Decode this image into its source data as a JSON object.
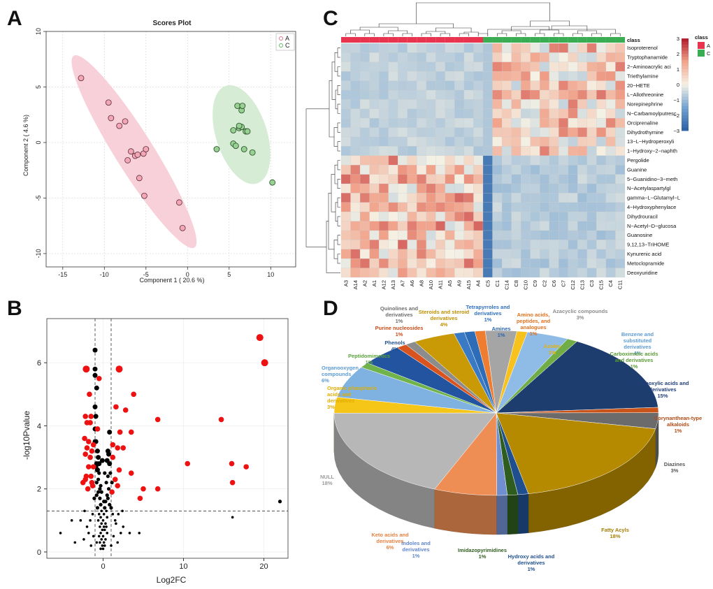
{
  "panels": {
    "a": "A",
    "b": "B",
    "c": "C",
    "d": "D"
  },
  "chart_data": [
    {
      "type": "scatter",
      "panel": "A",
      "title": "Scores Plot",
      "xlabel": "Component 1 ( 20.6 %)",
      "ylabel": "Component 2 ( 4.6 %)",
      "xlim": [
        -17,
        13
      ],
      "ylim": [
        -11.2,
        10
      ],
      "xticks": [
        -15,
        -10,
        -5,
        0,
        5,
        10
      ],
      "yticks": [
        -10,
        -5,
        0,
        5,
        10
      ],
      "legend": [
        "A",
        "C"
      ],
      "colors": {
        "A": "#e8738c",
        "C": "#5cb85c",
        "A_fill": "#f7c8d2",
        "C_fill": "#cfe9cc"
      },
      "series": [
        {
          "name": "A",
          "points": [
            [
              -12.8,
              5.8
            ],
            [
              -9.5,
              3.6
            ],
            [
              -9.2,
              2.2
            ],
            [
              -8.2,
              1.5
            ],
            [
              -7.5,
              1.9
            ],
            [
              -6.8,
              -0.8
            ],
            [
              -6.3,
              -1.2
            ],
            [
              -6.0,
              -1.1
            ],
            [
              -7.2,
              -1.6
            ],
            [
              -5.3,
              -1.0
            ],
            [
              -5.0,
              -0.6
            ],
            [
              -5.8,
              -3.2
            ],
            [
              -5.2,
              -4.8
            ],
            [
              -1.0,
              -5.4
            ],
            [
              -0.6,
              -7.7
            ]
          ]
        },
        {
          "name": "C",
          "points": [
            [
              3.5,
              -0.6
            ],
            [
              5.5,
              -0.1
            ],
            [
              6.0,
              3.3
            ],
            [
              6.5,
              2.9
            ],
            [
              6.6,
              3.3
            ],
            [
              6.2,
              1.3
            ],
            [
              6.5,
              1.4
            ],
            [
              5.5,
              1.1
            ],
            [
              7.0,
              1.0
            ],
            [
              7.2,
              1.0
            ],
            [
              5.8,
              -0.3
            ],
            [
              6.8,
              -0.6
            ],
            [
              7.8,
              -0.9
            ],
            [
              10.2,
              -3.6
            ],
            [
              6.2,
              1.5
            ]
          ]
        }
      ]
    },
    {
      "type": "scatter",
      "panel": "B",
      "xlabel": "Log2FC",
      "ylabel": "-log10Pvalue",
      "xlim": [
        -7,
        23
      ],
      "ylim": [
        -0.2,
        7.4
      ],
      "xticks": [
        0,
        10,
        20
      ],
      "yticks": [
        0,
        2,
        4,
        6
      ],
      "thresholds": {
        "fc": [
          -1,
          1
        ],
        "p": 1.3
      },
      "colors": {
        "sig": "#ee1111",
        "ns": "#000000"
      },
      "series": [
        {
          "name": "significant",
          "points": [
            [
              19.5,
              6.8
            ],
            [
              20.1,
              6.0
            ],
            [
              -2.1,
              5.8
            ],
            [
              2.0,
              5.8
            ],
            [
              -0.5,
              5.5
            ],
            [
              3.8,
              5.0
            ],
            [
              -1.7,
              5.0
            ],
            [
              1.6,
              4.6
            ],
            [
              2.8,
              4.5
            ],
            [
              -2.2,
              4.3
            ],
            [
              -1.5,
              4.3
            ],
            [
              6.8,
              4.2
            ],
            [
              14.7,
              4.2
            ],
            [
              -2.0,
              4.1
            ],
            [
              -1.6,
              4.1
            ],
            [
              -0.7,
              3.9
            ],
            [
              2.1,
              3.8
            ],
            [
              3.5,
              3.8
            ],
            [
              -2.3,
              3.6
            ],
            [
              -1.8,
              3.5
            ],
            [
              -1.2,
              3.4
            ],
            [
              1.2,
              3.4
            ],
            [
              2.5,
              3.3
            ],
            [
              -2.0,
              3.3
            ],
            [
              1.8,
              3.3
            ],
            [
              -1.4,
              3.2
            ],
            [
              -2.2,
              3.1
            ],
            [
              1.2,
              3.0
            ],
            [
              -1.6,
              3.0
            ],
            [
              10.5,
              2.8
            ],
            [
              16.0,
              2.8
            ],
            [
              17.8,
              2.7
            ],
            [
              -1.8,
              2.7
            ],
            [
              -1.2,
              2.7
            ],
            [
              2.0,
              2.6
            ],
            [
              3.5,
              2.5
            ],
            [
              -2.1,
              2.4
            ],
            [
              -1.5,
              2.4
            ],
            [
              1.5,
              2.3
            ],
            [
              -2.5,
              2.2
            ],
            [
              -1.3,
              2.1
            ],
            [
              1.8,
              2.1
            ],
            [
              -1.9,
              2.0
            ],
            [
              6.8,
              2.0
            ],
            [
              5.0,
              2.0
            ],
            [
              16.1,
              2.2
            ],
            [
              1.1,
              1.9
            ],
            [
              4.6,
              1.7
            ],
            [
              -2.2,
              2.3
            ],
            [
              -1.4,
              2.2
            ]
          ]
        },
        {
          "name": "not significant",
          "points": [
            [
              -1.0,
              6.4
            ],
            [
              -1.0,
              5.8
            ],
            [
              -1.0,
              5.6
            ],
            [
              -0.8,
              5.2
            ],
            [
              -1.0,
              4.6
            ],
            [
              -0.9,
              4.3
            ],
            [
              -1.0,
              3.9
            ],
            [
              -1.0,
              3.5
            ],
            [
              -0.9,
              3.5
            ],
            [
              -0.7,
              3.2
            ],
            [
              0.8,
              3.8
            ],
            [
              0.6,
              3.2
            ],
            [
              0.7,
              3.1
            ],
            [
              0.5,
              2.9
            ],
            [
              -0.6,
              3.0
            ],
            [
              -0.8,
              2.8
            ],
            [
              -0.5,
              2.8
            ],
            [
              -0.7,
              2.6
            ],
            [
              -0.5,
              2.5
            ],
            [
              -0.9,
              2.7
            ],
            [
              0.8,
              2.8
            ],
            [
              0.9,
              2.5
            ],
            [
              0.6,
              2.4
            ],
            [
              -0.6,
              2.3
            ],
            [
              -0.8,
              2.2
            ],
            [
              -0.4,
              2.0
            ],
            [
              0.4,
              2.2
            ],
            [
              0.7,
              2.0
            ],
            [
              -0.6,
              1.9
            ],
            [
              0.5,
              1.8
            ],
            [
              -0.8,
              1.8
            ],
            [
              -0.4,
              1.7
            ],
            [
              0.6,
              1.7
            ],
            [
              0.3,
              1.6
            ],
            [
              -0.3,
              1.5
            ],
            [
              0.2,
              1.4
            ],
            [
              -0.2,
              1.3
            ],
            [
              0.4,
              1.3
            ],
            [
              -0.5,
              1.2
            ],
            [
              0.1,
              1.2
            ],
            [
              -0.3,
              1.1
            ],
            [
              0.5,
              1.1
            ],
            [
              -0.6,
              1.0
            ],
            [
              0.0,
              1.0
            ],
            [
              0.3,
              0.9
            ],
            [
              -0.2,
              0.9
            ],
            [
              -0.4,
              0.8
            ],
            [
              0.4,
              0.8
            ],
            [
              -0.1,
              0.7
            ],
            [
              0.2,
              0.7
            ],
            [
              -0.3,
              0.6
            ],
            [
              0.5,
              0.6
            ],
            [
              0.0,
              0.5
            ],
            [
              -0.5,
              0.5
            ],
            [
              0.3,
              0.4
            ],
            [
              -0.2,
              0.4
            ],
            [
              0.1,
              0.3
            ],
            [
              -0.4,
              0.3
            ],
            [
              0.2,
              0.2
            ],
            [
              -0.1,
              0.2
            ],
            [
              0.0,
              0.1
            ],
            [
              -0.3,
              0.1
            ],
            [
              1.0,
              1.4
            ],
            [
              1.2,
              1.2
            ],
            [
              1.5,
              1.0
            ],
            [
              -1.3,
              1.2
            ],
            [
              -1.6,
              1.0
            ],
            [
              -2.0,
              0.8
            ],
            [
              -1.8,
              0.6
            ],
            [
              -2.4,
              0.4
            ],
            [
              -1.2,
              0.5
            ],
            [
              -0.8,
              0.3
            ],
            [
              1.3,
              0.5
            ],
            [
              1.8,
              0.3
            ],
            [
              2.2,
              0.6
            ],
            [
              1.6,
              0.9
            ],
            [
              2.5,
              0.8
            ],
            [
              -3.5,
              0.3
            ],
            [
              -5.3,
              0.6
            ],
            [
              -3.9,
              1.0
            ],
            [
              3.3,
              0.6
            ],
            [
              4.5,
              0.6
            ],
            [
              1.0,
              0.2
            ],
            [
              -1.5,
              0.2
            ],
            [
              1.9,
              1.2
            ],
            [
              2.4,
              1.3
            ],
            [
              -2.3,
              1.3
            ],
            [
              -2.8,
              1.0
            ],
            [
              -0.2,
              1.9
            ],
            [
              0.1,
              1.6
            ],
            [
              22.0,
              1.6
            ],
            [
              16.1,
              1.1
            ],
            [
              -0.3,
              2.1
            ],
            [
              0.2,
              2.5
            ],
            [
              -0.1,
              2.9
            ],
            [
              0.1,
              0.8
            ],
            [
              -0.7,
              1.4
            ],
            [
              0.8,
              1.5
            ],
            [
              -1.1,
              1.7
            ],
            [
              1.1,
              2.2
            ]
          ]
        }
      ]
    },
    {
      "type": "heatmap",
      "panel": "C",
      "class_label": "class",
      "legend": [
        "A",
        "C"
      ],
      "colors": {
        "A": "#e8344f",
        "C": "#3aad52"
      },
      "colorbar": {
        "min": -3,
        "max": 3,
        "ticks": [
          3,
          2,
          1,
          0,
          -1,
          -2,
          -3
        ],
        "low": "#2b5fa2",
        "mid": "#f5f1e4",
        "high": "#b2182b"
      },
      "columns": [
        "A3",
        "A14",
        "A2",
        "A1",
        "A12",
        "A13",
        "A7",
        "A6",
        "A8",
        "A10",
        "A11",
        "A5",
        "A9",
        "A15",
        "A4",
        "C5",
        "C1",
        "C14",
        "C8",
        "C10",
        "C9",
        "C2",
        "C6",
        "C7",
        "C12",
        "C13",
        "C3",
        "C15",
        "C4",
        "C11"
      ],
      "rows": [
        "Isoproterenol",
        "Tryptophanamide",
        "2−Aminoacrylic aci",
        "Triethylamine",
        "20−HETE",
        "L−Allothreonine",
        "Norepinephrine",
        "N−Carbamoylputresc",
        "Orciprenaline",
        "Dihydrothymine",
        "13−L−Hydroperoxyli",
        "1−Hydroxy−2−naphth",
        "Pergolide",
        "Guanine",
        "5−Guanidino−3−meth",
        "N−Acetylaspartylgl",
        "gamma−L−Glutamyl−L",
        "4−Hydroxyphenylace",
        "Dihydrouracil",
        "N−Acetyl−D−glucosa",
        "Guanosine",
        "9,12,13−TriHOME",
        "Kynurenic acid",
        "Metoclopramide",
        "Deoxyuridine"
      ]
    },
    {
      "type": "pie",
      "panel": "D",
      "slices": [
        {
          "label": "Carboxylic acids and derivatives",
          "value": 15,
          "color": "#1e3d6f",
          "text_color": "#1f3d7a"
        },
        {
          "label": "Corynanthean-type alkaloids",
          "value": 1,
          "color": "#c9541a",
          "text_color": "#b24a14"
        },
        {
          "label": "Diazines",
          "value": 3,
          "color": "#6b6b6b",
          "text_color": "#555555"
        },
        {
          "label": "Fatty Acyls",
          "value": 18,
          "color": "#b58a00",
          "text_color": "#a67c00"
        },
        {
          "label": "Hydroxy acids and derivatives",
          "value": 1,
          "color": "#1f4f8f",
          "text_color": "#1f4f8f"
        },
        {
          "label": "Imidazopyrimidines",
          "value": 1,
          "color": "#2f5d1f",
          "text_color": "#2f5d1f"
        },
        {
          "label": "Indoles and derivatives",
          "value": 1,
          "color": "#6f8fd0",
          "text_color": "#5f86cc"
        },
        {
          "label": "Keto acids and derivatives",
          "value": 6,
          "color": "#ee8e54",
          "text_color": "#e9803e"
        },
        {
          "label": "NULL",
          "value": 18,
          "color": "#b7b7b7",
          "text_color": "#9a9a9a"
        },
        {
          "label": "Organic phosphoric acids and derivatives",
          "value": 3,
          "color": "#f5c518",
          "text_color": "#e0ad00"
        },
        {
          "label": "Organooxygen compounds",
          "value": 6,
          "color": "#7fb2e0",
          "text_color": "#5b9bd5"
        },
        {
          "label": "Peptidomimetics",
          "value": 1,
          "color": "#6fb34a",
          "text_color": "#5aa33a"
        },
        {
          "label": "Phenols",
          "value": 4,
          "color": "#23549f",
          "text_color": "#1f4f8f"
        },
        {
          "label": "Purine nucleosides",
          "value": 1,
          "color": "#d9531e",
          "text_color": "#cc4a16"
        },
        {
          "label": "Quinolines and derivatives",
          "value": 1,
          "color": "#8c8c8c",
          "text_color": "#6e6e6e"
        },
        {
          "label": "Steroids and steroid derivatives",
          "value": 4,
          "color": "#c99a06",
          "text_color": "#c08f00"
        },
        {
          "label": "Tetrapyrroles and derivatives",
          "value": 1,
          "color": "#3a79c4",
          "text_color": "#2e6fbf"
        },
        {
          "label": "Amines",
          "value": 1,
          "color": "#2d6db7",
          "text_color": "#2a66b0"
        },
        {
          "label": "Amino acids, peptides, and analogues",
          "value": 1,
          "color": "#ee7d31",
          "text_color": "#e3701e"
        },
        {
          "label": "Azacyclic compounds",
          "value": 3,
          "color": "#a5a5a5",
          "text_color": "#8c8c8c"
        },
        {
          "label": "Azoles",
          "value": 1,
          "color": "#f8c21e",
          "text_color": "#e8b100"
        },
        {
          "label": "Benzene and substituted derivatives",
          "value": 4,
          "color": "#8fbce6",
          "text_color": "#5b9bd5"
        },
        {
          "label": "Carboximidic acids and derivatives",
          "value": 1,
          "color": "#70ad47",
          "text_color": "#5a9a35"
        }
      ]
    }
  ]
}
